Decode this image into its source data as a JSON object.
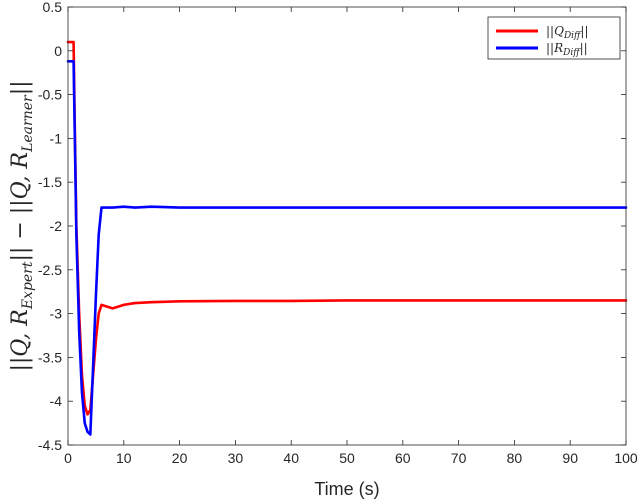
{
  "chart_data": {
    "type": "line",
    "xlabel": "Time (s)",
    "ylabel": "||Q, R_Expert|| − ||Q, R_Learner||",
    "xlim": [
      0,
      100
    ],
    "ylim": [
      -4.5,
      0.5
    ],
    "xticks": [
      0,
      10,
      20,
      30,
      40,
      50,
      60,
      70,
      80,
      90,
      100
    ],
    "yticks": [
      0.5,
      0,
      -0.5,
      -1,
      -1.5,
      -2,
      -2.5,
      -3,
      -3.5,
      -4,
      -4.5
    ],
    "xtick_labels": [
      "0",
      "10",
      "20",
      "30",
      "40",
      "50",
      "60",
      "70",
      "80",
      "90",
      "100"
    ],
    "ytick_labels": [
      "0.5",
      "0",
      "-0.5",
      "-1",
      "-1.5",
      "-2",
      "-2.5",
      "-3",
      "-3.5",
      "-4",
      "-4.5"
    ],
    "legend_position": "top-right",
    "grid": false,
    "series": [
      {
        "name": "||Q_Diff||",
        "color": "#ff0000",
        "x": [
          0,
          0.4,
          0.5,
          1.0,
          1.2,
          1.5,
          2.0,
          2.5,
          3.0,
          3.5,
          4.0,
          4.5,
          5.0,
          5.5,
          6.0,
          7.0,
          8.0,
          10,
          12,
          15,
          20,
          30,
          40,
          50,
          60,
          70,
          80,
          90,
          100
        ],
        "values": [
          0.1,
          0.1,
          0.1,
          0.1,
          -0.8,
          -2.0,
          -3.0,
          -3.7,
          -4.05,
          -4.15,
          -4.1,
          -3.7,
          -3.3,
          -3.0,
          -2.9,
          -2.92,
          -2.94,
          -2.9,
          -2.88,
          -2.87,
          -2.86,
          -2.855,
          -2.855,
          -2.85,
          -2.85,
          -2.85,
          -2.85,
          -2.85,
          -2.85
        ]
      },
      {
        "name": "||R_Diff||",
        "color": "#0000ff",
        "x": [
          0,
          0.4,
          0.5,
          1.0,
          1.2,
          1.5,
          2.0,
          2.5,
          3.0,
          3.5,
          4.0,
          4.5,
          5.0,
          5.5,
          6.0,
          7.0,
          8.0,
          10,
          12,
          15,
          20,
          30,
          40,
          50,
          60,
          70,
          80,
          90,
          100
        ],
        "values": [
          -0.12,
          -0.12,
          -0.12,
          -0.12,
          -0.9,
          -2.1,
          -3.2,
          -3.9,
          -4.25,
          -4.35,
          -4.38,
          -3.6,
          -2.8,
          -2.1,
          -1.79,
          -1.79,
          -1.79,
          -1.78,
          -1.79,
          -1.78,
          -1.79,
          -1.79,
          -1.79,
          -1.79,
          -1.79,
          -1.79,
          -1.79,
          -1.79,
          -1.79
        ]
      }
    ]
  }
}
